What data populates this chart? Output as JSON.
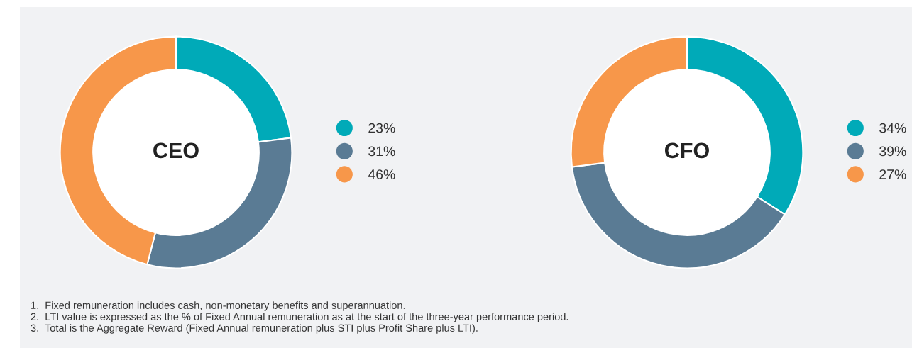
{
  "chart_data": [
    {
      "type": "donut",
      "title": "CEO",
      "categories": [
        "23%",
        "31%",
        "46%"
      ],
      "values": [
        23,
        31,
        46
      ],
      "colors": [
        "#00aab8",
        "#5a7b94",
        "#f7974a"
      ],
      "legend": "right",
      "annotations": [
        "1.  Fixed remuneration includes cash, non-monetary benefits and superannuation.",
        "2.  LTI value is expressed as the % of Fixed Annual remuneration as at the start of the three-year performance period.",
        "3.  Total is the Aggregate Reward (Fixed Annual remuneration plus STI plus Profit Share plus LTI)."
      ]
    },
    {
      "type": "donut",
      "title": "CFO",
      "categories": [
        "34%",
        "39%",
        "27%"
      ],
      "values": [
        34,
        39,
        27
      ],
      "colors": [
        "#00aab8",
        "#5a7b94",
        "#f7974a"
      ],
      "legend": "right"
    }
  ]
}
